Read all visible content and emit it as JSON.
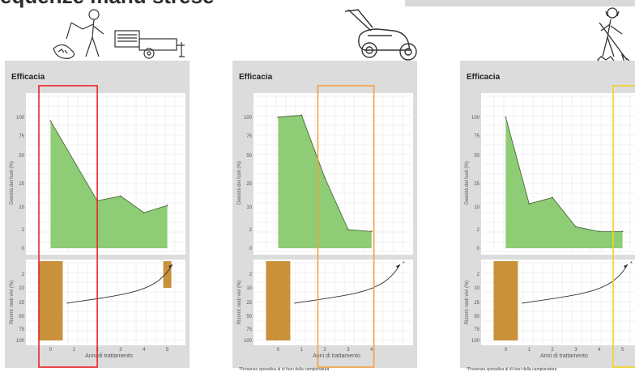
{
  "heading": "equenze manu strese",
  "illustrations": [
    {
      "icon": "mulching-tractor-icon"
    },
    {
      "icon": "lawn-mower-icon"
    },
    {
      "icon": "digging-person-icon"
    }
  ],
  "panels": [
    {
      "title": "Efficacia",
      "footnote": "",
      "highlight_color": "#e8232a",
      "highlight_range": [
        -0.5,
        2.0
      ]
    },
    {
      "title": "Efficacia",
      "footnote": "*Presenza sporadica al di fuori della campionatura",
      "highlight_color": "#f5a142",
      "highlight_range": [
        1.7,
        4.1
      ]
    },
    {
      "title": "Efficacia",
      "footnote": "*Presenza sporadica al di fuori della campionatura",
      "highlight_color": "#f2d21b",
      "highlight_range": [
        4.6,
        5.6
      ]
    }
  ],
  "chart_data": [
    {
      "type": "area",
      "title": "Efficacia",
      "ylabel_top": "Densità dei fusti (%)",
      "ylabel_bottom": "Rizomi: nodi vivi (%)",
      "xlabel": "Anni di trattamento",
      "x_ticks": [
        0,
        1,
        2,
        3,
        4,
        5
      ],
      "y_ticks_top": [
        0,
        2,
        10,
        25,
        50,
        75,
        100
      ],
      "y_ticks_bottom": [
        2,
        10,
        25,
        50,
        75,
        100
      ],
      "x": [
        0,
        2,
        3,
        4,
        5
      ],
      "y": [
        95,
        14,
        17,
        8,
        11
      ],
      "rhizome_bars": [
        {
          "x": 0,
          "from": 0,
          "to": 100
        },
        {
          "x": 5,
          "from": 0,
          "to": 10
        }
      ],
      "rhizome_trend_end_label": "",
      "color_fill": "#8fcc76",
      "color_bar": "#c8913a"
    },
    {
      "type": "area",
      "title": "Efficacia",
      "ylabel_top": "Densità dei fusti (%)",
      "ylabel_bottom": "Rizomi: nodi vivi (%)",
      "xlabel": "Anni di trattamento",
      "x_ticks": [
        0,
        1,
        2,
        3,
        4
      ],
      "y_ticks_top": [
        0,
        2,
        10,
        25,
        50,
        75,
        100
      ],
      "y_ticks_bottom": [
        2,
        10,
        25,
        50,
        75,
        100
      ],
      "x": [
        0,
        1,
        2,
        3,
        4
      ],
      "y": [
        100,
        110,
        30,
        2,
        1.8
      ],
      "rhizome_bars": [
        {
          "x": 0,
          "from": 0,
          "to": 100
        }
      ],
      "rhizome_trend_end_label": "*",
      "color_fill": "#8fcc76",
      "color_bar": "#c8913a"
    },
    {
      "type": "area",
      "title": "Efficacia",
      "ylabel_top": "Densità dei fusti (%)",
      "ylabel_bottom": "Rizomi: nodi vivi (%)",
      "xlabel": "Anni di trattamento",
      "x_ticks": [
        0,
        1,
        2,
        3,
        4,
        5
      ],
      "y_ticks_top": [
        0,
        2,
        10,
        25,
        50,
        75,
        100
      ],
      "y_ticks_bottom": [
        2,
        10,
        25,
        50,
        75,
        100
      ],
      "x": [
        0,
        1,
        2,
        3,
        4,
        5
      ],
      "y": [
        100,
        12,
        16,
        3,
        1.8,
        1.8
      ],
      "rhizome_bars": [
        {
          "x": 0,
          "from": 0,
          "to": 100
        }
      ],
      "rhizome_trend_end_label": "*",
      "color_fill": "#8fcc76",
      "color_bar": "#c8913a"
    }
  ]
}
